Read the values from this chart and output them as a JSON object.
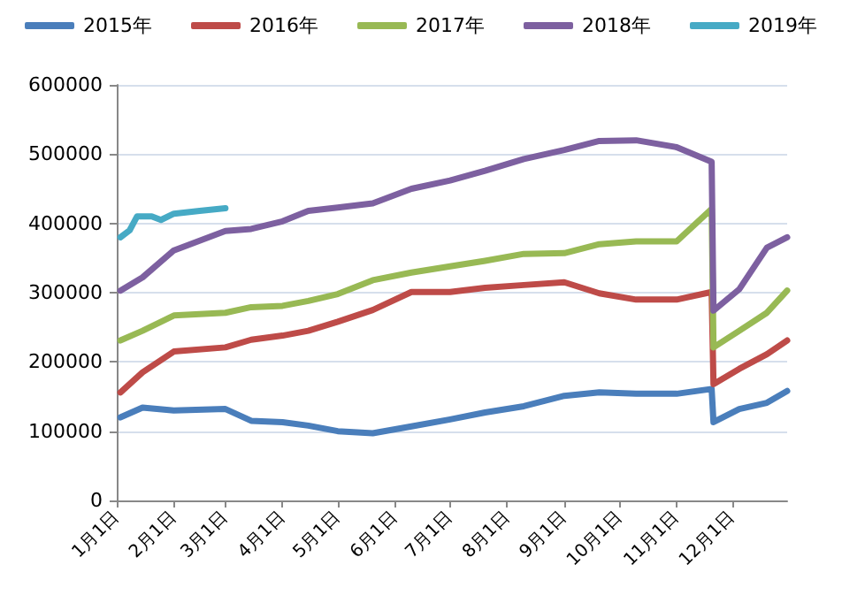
{
  "chart_data": {
    "type": "line",
    "legend": "top",
    "grid": "y",
    "marker": "none",
    "line_style": "solid",
    "xlim": [
      "--01-01",
      "--12-31"
    ],
    "xticks": [
      {
        "value": "--01-01",
        "label": "1月1日"
      },
      {
        "value": "--02-01",
        "label": "2月1日"
      },
      {
        "value": "--03-01",
        "label": "3月1日"
      },
      {
        "value": "--04-01",
        "label": "4月1日"
      },
      {
        "value": "--05-01",
        "label": "5月1日"
      },
      {
        "value": "--06-01",
        "label": "6月1日"
      },
      {
        "value": "--07-01",
        "label": "7月1日"
      },
      {
        "value": "--08-01",
        "label": "8月1日"
      },
      {
        "value": "--09-01",
        "label": "9月1日"
      },
      {
        "value": "--10-01",
        "label": "10月1日"
      },
      {
        "value": "--11-01",
        "label": "11月1日"
      },
      {
        "value": "--12-01",
        "label": "12月1日"
      }
    ],
    "ylim": [
      0,
      600000
    ],
    "yticks": [
      0,
      100000,
      200000,
      300000,
      400000,
      500000,
      600000
    ],
    "x": [
      "--01-03",
      "--01-15",
      "--02-01",
      "--03-01",
      "--03-15",
      "--04-01",
      "--04-15",
      "--05-01",
      "--05-20",
      "--06-10",
      "--07-01",
      "--07-20",
      "--08-10",
      "--09-01",
      "--09-20",
      "--10-10",
      "--11-01",
      "--11-20",
      "--11-21",
      "--12-05",
      "--12-20",
      "--12-31"
    ],
    "series": [
      {
        "name": "2015年",
        "color": "#4a7ebb",
        "values": [
          120000,
          134000,
          130000,
          132000,
          115000,
          113000,
          108000,
          100000,
          97000,
          107000,
          117000,
          127000,
          136000,
          151000,
          156000,
          154000,
          154000,
          161000,
          113000,
          132000,
          141000,
          158000
        ]
      },
      {
        "name": "2016年",
        "color": "#be4b48",
        "values": [
          156000,
          185000,
          215000,
          221000,
          232000,
          238000,
          245000,
          258000,
          275000,
          301000,
          301000,
          307000,
          311000,
          315000,
          299000,
          290000,
          290000,
          301000,
          168000,
          190000,
          211000,
          231000
        ]
      },
      {
        "name": "2017年",
        "color": "#98b954",
        "values": [
          231000,
          245000,
          267000,
          271000,
          279000,
          281000,
          288000,
          298000,
          318000,
          329000,
          338000,
          346000,
          356000,
          357000,
          370000,
          374000,
          374000,
          421000,
          221000,
          245000,
          271000,
          303000
        ]
      },
      {
        "name": "2018年",
        "color": "#7d60a0",
        "values": [
          303000,
          322000,
          361000,
          389000,
          392000,
          403000,
          418000,
          423000,
          429000,
          450000,
          462000,
          476000,
          493000,
          506000,
          519000,
          520000,
          510000,
          489000,
          274000,
          305000,
          365000,
          380000
        ]
      },
      {
        "name": "2019年",
        "color": "#46aac5",
        "x": [
          "--01-03",
          "--01-08",
          "--01-12",
          "--01-20",
          "--01-25",
          "--02-01",
          "--02-15",
          "--03-01"
        ],
        "values": [
          380000,
          390000,
          410000,
          410000,
          405000,
          414000,
          418000,
          422000
        ]
      }
    ]
  }
}
